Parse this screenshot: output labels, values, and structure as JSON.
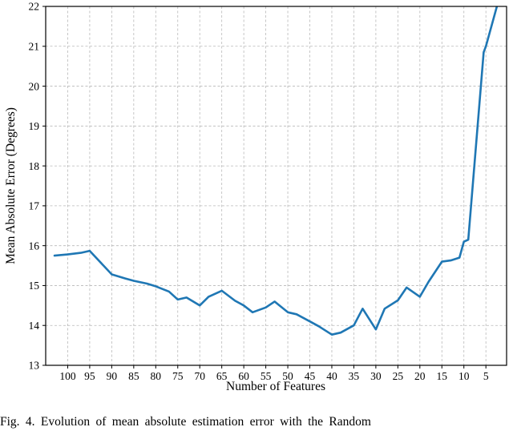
{
  "chart_data": {
    "type": "line",
    "title": "",
    "xlabel": "Number of Features",
    "ylabel": "Mean Absolute Error (Degrees)",
    "x_axis_reversed": true,
    "xlim": [
      105,
      0.3
    ],
    "ylim": [
      13,
      22
    ],
    "x_ticks": [
      100,
      95,
      90,
      85,
      80,
      75,
      70,
      65,
      60,
      55,
      50,
      45,
      40,
      35,
      30,
      25,
      20,
      15,
      10,
      5
    ],
    "y_ticks": [
      13,
      14,
      15,
      16,
      17,
      18,
      19,
      20,
      21,
      22
    ],
    "grid": true,
    "legend": "none",
    "line_color": "#1f77b4",
    "grid_color": "#b8b8b8",
    "axis_color": "#000000",
    "series": [
      {
        "name": "Mean Absolute Error",
        "x": [
          103,
          100,
          97,
          95,
          90,
          87,
          85,
          82,
          80,
          77,
          75,
          73,
          70,
          68,
          65,
          62,
          60,
          58,
          55,
          53,
          50,
          48,
          45,
          43,
          40,
          38,
          35,
          33,
          30,
          28,
          25,
          23,
          20,
          18,
          15,
          13,
          11,
          10,
          9,
          5.5,
          5,
          2.5
        ],
        "y": [
          15.75,
          15.78,
          15.82,
          15.87,
          15.28,
          15.18,
          15.12,
          15.05,
          14.98,
          14.85,
          14.65,
          14.7,
          14.5,
          14.72,
          14.87,
          14.62,
          14.5,
          14.33,
          14.45,
          14.6,
          14.33,
          14.28,
          14.1,
          13.98,
          13.77,
          13.82,
          14.0,
          14.42,
          13.9,
          14.42,
          14.63,
          14.95,
          14.72,
          15.1,
          15.6,
          15.63,
          15.7,
          16.1,
          16.15,
          20.85,
          21.0,
          22.0
        ]
      }
    ],
    "caption": "Fig. 4.   Evolution of mean absolute estimation error with the Random"
  }
}
